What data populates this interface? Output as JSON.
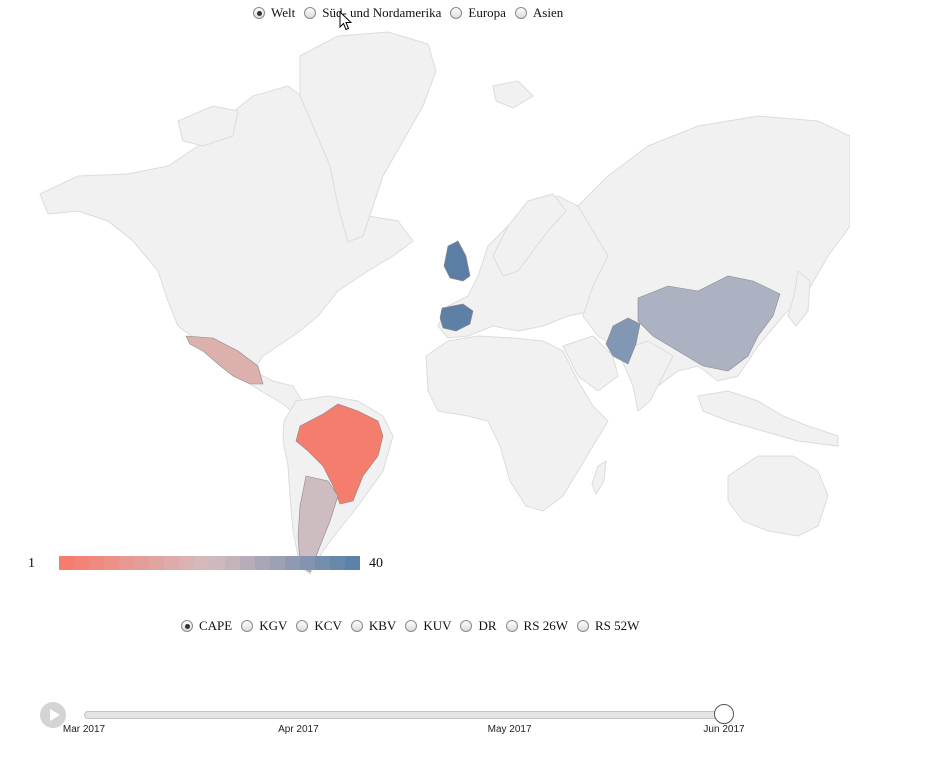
{
  "region_selector": {
    "options": [
      {
        "label": "Welt",
        "checked": true
      },
      {
        "label": "Süd- und Nordamerika",
        "checked": false
      },
      {
        "label": "Europa",
        "checked": false
      },
      {
        "label": "Asien",
        "checked": false
      }
    ]
  },
  "metric_selector": {
    "options": [
      {
        "label": "CAPE",
        "checked": true
      },
      {
        "label": "KGV",
        "checked": false
      },
      {
        "label": "KCV",
        "checked": false
      },
      {
        "label": "KBV",
        "checked": false
      },
      {
        "label": "KUV",
        "checked": false
      },
      {
        "label": "DR",
        "checked": false
      },
      {
        "label": "RS 26W",
        "checked": false
      },
      {
        "label": "RS 52W",
        "checked": false
      }
    ]
  },
  "legend": {
    "min_label": "1",
    "max_label": "40",
    "color_low": "#f47d6e",
    "color_mid": "#d6bcbf",
    "color_high": "#5b82a8"
  },
  "map": {
    "land_color": "#f1f1f1",
    "highlighted_countries": [
      {
        "name": "Brazil",
        "color": "#f47d6e"
      },
      {
        "name": "Mexico",
        "color": "#dcb0ad"
      },
      {
        "name": "Argentina",
        "color": "#cdbcc0"
      },
      {
        "name": "United Kingdom",
        "color": "#5d7ea4"
      },
      {
        "name": "Spain",
        "color": "#5f80a5"
      },
      {
        "name": "Pakistan",
        "color": "#8197b4"
      },
      {
        "name": "China",
        "color": "#adb2c2"
      }
    ]
  },
  "timeline": {
    "ticks": [
      {
        "label": "Mar 2017",
        "position": 0.0
      },
      {
        "label": "Apr 2017",
        "position": 0.335
      },
      {
        "label": "May 2017",
        "position": 0.665
      },
      {
        "label": "Jun 2017",
        "position": 1.0
      }
    ],
    "current_position": 1.0
  }
}
